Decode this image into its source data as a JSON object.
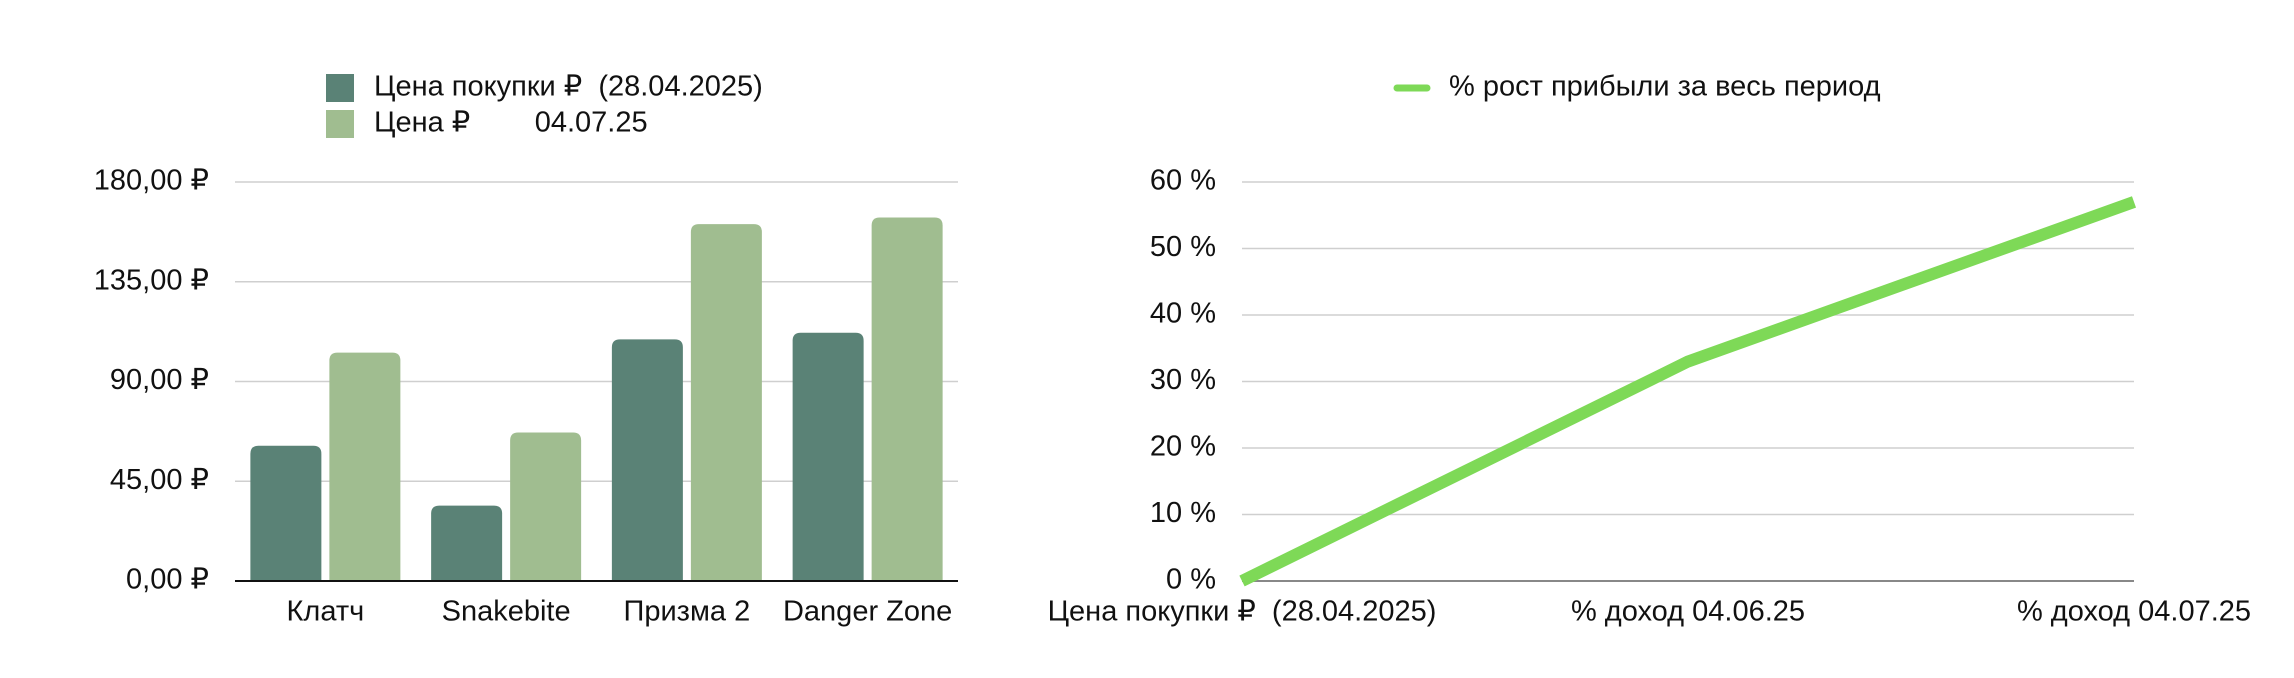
{
  "chart_data": [
    {
      "type": "bar",
      "categories": [
        "Клатч",
        "Snakebite",
        "Призма 2",
        "Danger Zone"
      ],
      "series": [
        {
          "name": "Цена покупки ₽  (28.04.2025)",
          "color": "#5a8276",
          "values": [
            61,
            34,
            109,
            112
          ]
        },
        {
          "name": "Цена ₽        04.07.25",
          "color": "#a0bd90",
          "values": [
            103,
            67,
            161,
            164
          ]
        }
      ],
      "ylim": [
        0,
        180
      ],
      "yticks": [
        {
          "value": 0,
          "label": "0,00 ₽"
        },
        {
          "value": 45,
          "label": "45,00 ₽"
        },
        {
          "value": 90,
          "label": "90,00 ₽"
        },
        {
          "value": 135,
          "label": "135,00 ₽"
        },
        {
          "value": 180,
          "label": "180,00 ₽"
        }
      ],
      "grid": true,
      "legend": "top"
    },
    {
      "type": "line",
      "categories": [
        "Цена покупки ₽  (28.04.2025)",
        "% доход 04.06.25",
        "% доход 04.07.25"
      ],
      "series": [
        {
          "name": "% рост прибыли за весь период",
          "color": "#7ed957",
          "values": [
            0,
            33,
            57
          ]
        }
      ],
      "ylim": [
        0,
        60
      ],
      "yticks": [
        {
          "value": 0,
          "label": "0 %"
        },
        {
          "value": 10,
          "label": "10 %"
        },
        {
          "value": 20,
          "label": "20 %"
        },
        {
          "value": 30,
          "label": "30 %"
        },
        {
          "value": 40,
          "label": "40 %"
        },
        {
          "value": 50,
          "label": "50 %"
        },
        {
          "value": 60,
          "label": "60 %"
        }
      ],
      "grid": true,
      "legend": "top"
    }
  ]
}
